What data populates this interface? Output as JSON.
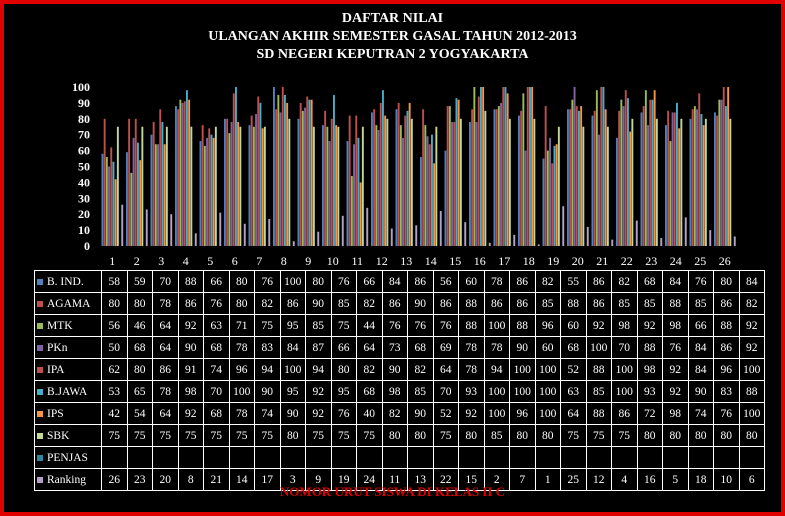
{
  "titles": {
    "line1": "DAFTAR NILAI",
    "line2": "ULANGAN AKHIR SEMESTER GASAL TAHUN 2012-2013",
    "line3": "SD NEGERI KEPUTRAN 2 YOGYAKARTA"
  },
  "footer": "NOMOR URUT SISWA DI KELAS II C",
  "colors": {
    "frame": "#e00000",
    "background": "#000000",
    "text": "#ffffff",
    "footer": "#e00000"
  },
  "chart_data": {
    "type": "bar",
    "title": "DAFTAR NILAI",
    "xlabel": "NOMOR URUT SISWA DI KELAS II C",
    "ylim": [
      0,
      100
    ],
    "yticks": [
      0,
      10,
      20,
      30,
      40,
      50,
      60,
      70,
      80,
      90,
      100
    ],
    "grid": false,
    "legend": "data-table-below",
    "categories": [
      "1",
      "2",
      "3",
      "4",
      "5",
      "6",
      "7",
      "8",
      "9",
      "10",
      "11",
      "12",
      "13",
      "14",
      "15",
      "16",
      "17",
      "18",
      "19",
      "20",
      "21",
      "22",
      "23",
      "24",
      "25",
      "26"
    ],
    "series": [
      {
        "name": "B. IND.",
        "color": "#4f81bd",
        "values": [
          58,
          59,
          70,
          88,
          66,
          80,
          76,
          100,
          80,
          76,
          66,
          84,
          86,
          56,
          60,
          78,
          86,
          82,
          55,
          86,
          82,
          68,
          84,
          76,
          80,
          84
        ]
      },
      {
        "name": "AGAMA",
        "color": "#c0504d",
        "values": [
          80,
          80,
          78,
          86,
          76,
          80,
          82,
          86,
          90,
          85,
          82,
          86,
          90,
          86,
          88,
          86,
          86,
          85,
          88,
          86,
          85,
          85,
          88,
          85,
          86,
          82
        ]
      },
      {
        "name": "MTK",
        "color": "#9bbb59",
        "values": [
          56,
          46,
          64,
          92,
          63,
          71,
          75,
          95,
          85,
          75,
          44,
          76,
          76,
          76,
          88,
          100,
          88,
          96,
          60,
          92,
          98,
          92,
          98,
          66,
          88,
          92
        ]
      },
      {
        "name": "PKn",
        "color": "#8064a2",
        "values": [
          50,
          68,
          64,
          90,
          68,
          78,
          83,
          84,
          87,
          66,
          64,
          73,
          68,
          69,
          78,
          78,
          90,
          60,
          68,
          100,
          70,
          88,
          76,
          84,
          86,
          92
        ]
      },
      {
        "name": "IPA",
        "color": "#c0504d",
        "values": [
          62,
          80,
          86,
          91,
          74,
          96,
          94,
          100,
          94,
          80,
          82,
          90,
          82,
          64,
          78,
          94,
          100,
          100,
          52,
          88,
          100,
          98,
          92,
          84,
          96,
          100
        ]
      },
      {
        "name": "B.JAWA",
        "color": "#4bacc6",
        "values": [
          53,
          65,
          78,
          98,
          70,
          100,
          90,
          95,
          92,
          95,
          68,
          98,
          85,
          70,
          93,
          100,
          100,
          100,
          63,
          85,
          100,
          93,
          92,
          90,
          83,
          88
        ]
      },
      {
        "name": "IPS",
        "color": "#f79646",
        "values": [
          42,
          54,
          64,
          92,
          68,
          78,
          74,
          90,
          92,
          76,
          40,
          82,
          90,
          52,
          92,
          100,
          96,
          100,
          64,
          88,
          86,
          72,
          98,
          74,
          76,
          100
        ]
      },
      {
        "name": "SBK",
        "color": "#c3d69b",
        "values": [
          75,
          75,
          75,
          75,
          75,
          75,
          75,
          80,
          75,
          75,
          75,
          80,
          80,
          75,
          80,
          85,
          80,
          80,
          75,
          75,
          75,
          80,
          80,
          80,
          80,
          80
        ]
      },
      {
        "name": "PENJAS",
        "color": "#31859c",
        "values": [
          null,
          null,
          null,
          null,
          null,
          null,
          null,
          null,
          null,
          null,
          null,
          null,
          null,
          null,
          null,
          null,
          null,
          null,
          null,
          null,
          null,
          null,
          null,
          null,
          null,
          null
        ]
      },
      {
        "name": "Ranking",
        "color": "#b3a2c7",
        "values": [
          26,
          23,
          20,
          8,
          21,
          14,
          17,
          3,
          9,
          19,
          24,
          11,
          13,
          22,
          15,
          2,
          7,
          1,
          25,
          12,
          4,
          16,
          5,
          18,
          10,
          6
        ]
      }
    ]
  }
}
